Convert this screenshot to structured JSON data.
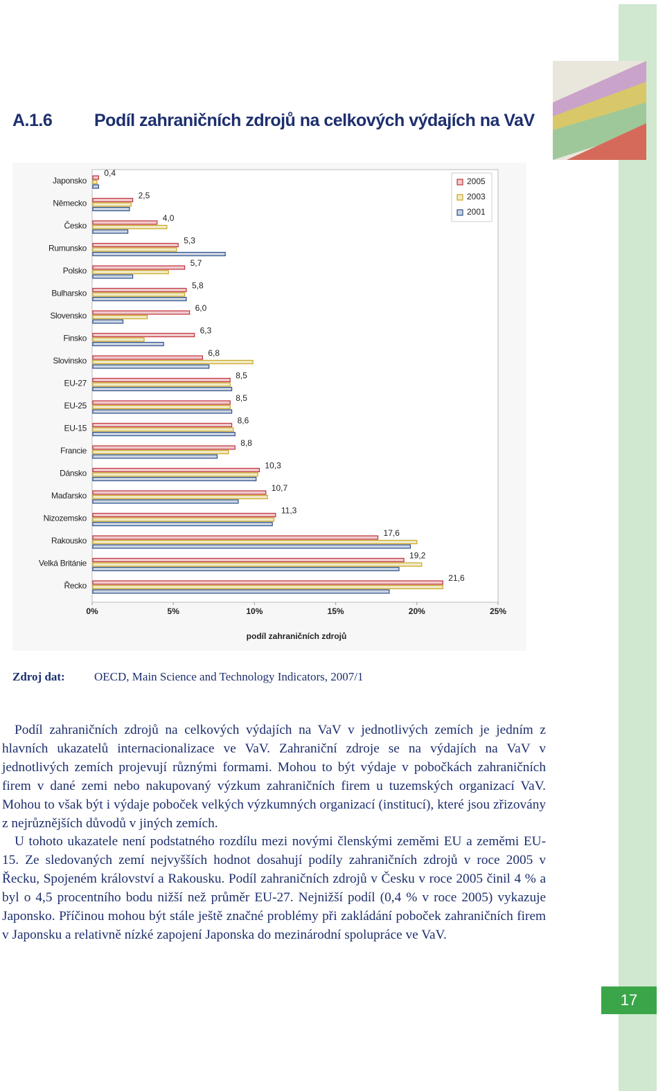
{
  "header": {
    "number": "A.1.6",
    "title": "Podíl zahraničních zdrojů na celkových výdajích na VaV"
  },
  "chart_data": {
    "type": "hbar",
    "categories": [
      "Japonsko",
      "Německo",
      "Česko",
      "Rumunsko",
      "Polsko",
      "Bulharsko",
      "Slovensko",
      "Finsko",
      "Slovinsko",
      "EU-27",
      "EU-25",
      "EU-15",
      "Francie",
      "Dánsko",
      "Maďarsko",
      "Nizozemsko",
      "Rakousko",
      "Velká Británie",
      "Řecko"
    ],
    "series": [
      {
        "name": "2005",
        "color": "#c0303a",
        "values": [
          0.4,
          2.5,
          4.0,
          5.3,
          5.7,
          5.8,
          6.0,
          6.3,
          6.8,
          8.5,
          8.5,
          8.6,
          8.8,
          10.3,
          10.7,
          11.3,
          17.6,
          19.2,
          21.6
        ],
        "value_labels": [
          "0,4",
          "2,5",
          "4,0",
          "5,3",
          "5,7",
          "5,8",
          "6,0",
          "6,3",
          "6,8",
          "8,5",
          "8,5",
          "8,6",
          "8,8",
          "10,3",
          "10,7",
          "11,3",
          "17,6",
          "19,2",
          "21,6"
        ]
      },
      {
        "name": "2003",
        "color": "#c8a820",
        "values": [
          0.3,
          2.4,
          4.6,
          5.2,
          4.7,
          5.7,
          3.4,
          3.2,
          9.9,
          8.5,
          8.5,
          8.7,
          8.4,
          10.2,
          10.8,
          11.2,
          20.0,
          20.3,
          21.6
        ]
      },
      {
        "name": "2001",
        "color": "#2d4f8c",
        "values": [
          0.4,
          2.3,
          2.2,
          8.2,
          2.5,
          5.8,
          1.9,
          4.4,
          7.2,
          8.6,
          8.6,
          8.8,
          7.7,
          10.1,
          9.0,
          11.1,
          19.6,
          18.9,
          18.3
        ]
      }
    ],
    "xlim": [
      0,
      25
    ],
    "xticks": [
      {
        "value": 0,
        "label": "0%"
      },
      {
        "value": 5,
        "label": "5%"
      },
      {
        "value": 10,
        "label": "10%"
      },
      {
        "value": 15,
        "label": "15%"
      },
      {
        "value": 20,
        "label": "20%"
      },
      {
        "value": 25,
        "label": "25%"
      }
    ],
    "x_label": "podíl zahraničních zdrojů",
    "legend": "top-right"
  },
  "source": {
    "label": "Zdroj dat:",
    "text": "OECD, Main Science and Technology Indicators, 2007/1"
  },
  "paragraphs": [
    "Podíl zahraničních zdrojů na celkových výdajích na VaV v jednotlivých zemích je jedním z hlavních ukazatelů internacionalizace ve VaV. Zahraniční zdroje se na výdajích na VaV v jednotlivých zemích projevují různými formami. Mohou to být výdaje v pobočkách zahraničních firem v dané zemi nebo nakupovaný výzkum zahraničních firem u tuzemských organizací VaV. Mohou to však být i výdaje poboček velkých výzkumných organizací (institucí), které jsou zřizovány z nejrůznějších důvodů v jiných zemích.",
    "U tohoto ukazatele není podstatného rozdílu mezi novými členskými zeměmi EU a zeměmi EU-15. Ze sledovaných zemí nejvyšších hodnot dosahují podíly zahraničních zdrojů v roce 2005 v Řecku, Spojeném království a Rakousku. Podíl zahraničních zdrojů v Česku v roce 2005 činil 4 % a byl o 4,5 procentního bodu nižší než průměr EU-27. Nejnižší podíl (0,4 % v roce 2005) vykazuje Japonsko. Příčinou mohou být stále ještě značné problémy při zakládání poboček zahraničních firem v Japonsku a relativně nízké zapojení Japonska do mezinárodní spolupráce ve VaV."
  ],
  "page_number": "17"
}
